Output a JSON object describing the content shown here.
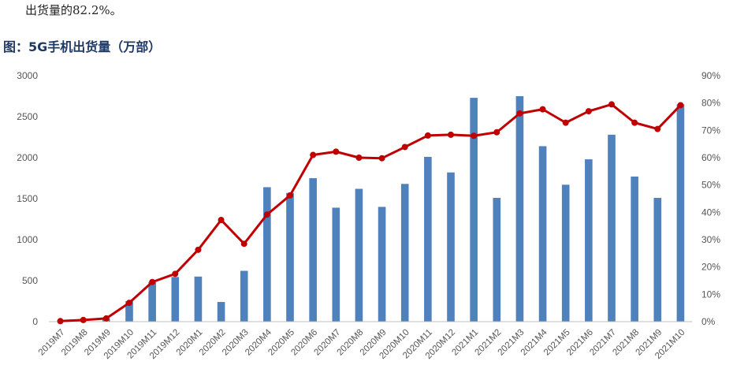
{
  "intro_text": "出货量的82.2%。",
  "figure_title": "图：5G手机出货量（万部）",
  "colors": {
    "bar": "#4f81bd",
    "line": "#c00000",
    "title": "#1f3864"
  },
  "chart_data": {
    "type": "bar",
    "title": "5G手机出货量（万部）",
    "categories": [
      "2019M7",
      "2019M8",
      "2019M9",
      "2019M10",
      "2019M11",
      "2019M12",
      "2020M1",
      "2020M2",
      "2020M3",
      "2020M4",
      "2020M5",
      "2020M6",
      "2020M7",
      "2020M8",
      "2020M9",
      "2020M10",
      "2020M11",
      "2020M12",
      "2021M1",
      "2021M2",
      "2021M3",
      "2021M4",
      "2021M5",
      "2021M6",
      "2021M7",
      "2021M8",
      "2021M9",
      "2021M10"
    ],
    "series": [
      {
        "type": "bar",
        "axis": "left",
        "values": [
          0,
          0,
          30,
          250,
          480,
          545,
          550,
          240,
          620,
          1640,
          1570,
          1750,
          1390,
          1620,
          1400,
          1680,
          2010,
          1820,
          2730,
          1510,
          2750,
          2140,
          1670,
          1980,
          2280,
          1770,
          1510,
          2650
        ]
      },
      {
        "type": "line",
        "axis": "right",
        "values": [
          0.2,
          0.6,
          1.2,
          6.9,
          14.5,
          17.5,
          26.3,
          37.2,
          28.5,
          39.2,
          46.2,
          61.0,
          62.2,
          60.0,
          59.8,
          63.9,
          68.1,
          68.4,
          68.0,
          69.3,
          76.2,
          77.7,
          72.8,
          77.0,
          79.5,
          72.8,
          70.5,
          79.2
        ]
      }
    ],
    "y_left": {
      "min": 0,
      "max": 3000,
      "ticks": [
        "0",
        "500",
        "1000",
        "1500",
        "2000",
        "2500",
        "3000"
      ]
    },
    "y_right": {
      "min": 0,
      "max": 90,
      "ticks": [
        "0%",
        "10%",
        "20%",
        "30%",
        "40%",
        "50%",
        "60%",
        "70%",
        "80%",
        "90%"
      ]
    },
    "grid": false,
    "legend": "none"
  }
}
